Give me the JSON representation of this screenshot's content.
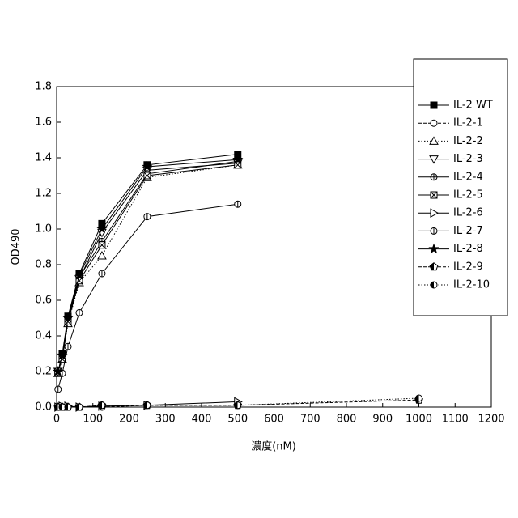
{
  "chart_data": {
    "type": "line",
    "x_label": "濃度(nM)",
    "y_label": "OD490",
    "x": [
      3.9,
      15.6,
      31.25,
      62.5,
      125,
      250,
      500,
      1000
    ],
    "xlim": [
      0,
      1200
    ],
    "ylim": [
      0,
      1.8
    ],
    "xticks": [
      0,
      100,
      200,
      300,
      400,
      500,
      600,
      700,
      800,
      900,
      1000,
      1100,
      1200
    ],
    "yticks": [
      {
        "value": 0,
        "label": "0.0"
      },
      0.2,
      0.4,
      0.6,
      0.8,
      {
        "value": 1,
        "label": "1.0"
      },
      1.2,
      1.4,
      1.6,
      1.8
    ],
    "color": "#000000",
    "legend": "right",
    "series": [
      {
        "name": "IL-2 WT",
        "marker": "square-filled",
        "dash": "solid",
        "values": [
          0.2,
          0.3,
          0.51,
          0.75,
          1.03,
          1.36,
          1.42,
          null
        ]
      },
      {
        "name": "IL-2-1",
        "marker": "circle-open",
        "dash": "dashed",
        "values": [
          0,
          0,
          0,
          0,
          0,
          0.01,
          0.01,
          null
        ]
      },
      {
        "name": "IL-2-2",
        "marker": "triangle-up",
        "dash": "dotted",
        "values": [
          0.19,
          0.27,
          0.47,
          0.7,
          0.85,
          1.29,
          1.36,
          null
        ]
      },
      {
        "name": "IL-2-3",
        "marker": "triangle-down",
        "dash": "solid",
        "values": [
          0.2,
          0.28,
          0.49,
          0.72,
          0.98,
          1.33,
          1.37,
          null
        ]
      },
      {
        "name": "IL-2-4",
        "marker": "circle-cross",
        "dash": "solid",
        "values": [
          0.2,
          0.28,
          0.49,
          0.73,
          0.93,
          1.31,
          1.38,
          null
        ]
      },
      {
        "name": "IL-2-5",
        "marker": "x-box",
        "dash": "solid",
        "values": [
          0.2,
          0.27,
          0.48,
          0.71,
          0.91,
          1.3,
          1.36,
          null
        ]
      },
      {
        "name": "IL-2-6",
        "marker": "triangle-right",
        "dash": "solid",
        "values": [
          0,
          0.005,
          0.005,
          0,
          0.005,
          0.01,
          0.03,
          null
        ]
      },
      {
        "name": "IL-2-7",
        "marker": "circle-vline",
        "dash": "solid",
        "values": [
          0.1,
          0.19,
          0.34,
          0.53,
          0.75,
          1.07,
          1.14,
          null
        ]
      },
      {
        "name": "IL-2-8",
        "marker": "star",
        "dash": "solid",
        "values": [
          0.2,
          0.29,
          0.5,
          0.74,
          1.0,
          1.35,
          1.39,
          null
        ]
      },
      {
        "name": "IL-2-9",
        "marker": "pentagon-half",
        "dash": "dashed",
        "values": [
          0,
          0,
          0,
          0,
          0.01,
          0.01,
          0.01,
          0.04
        ]
      },
      {
        "name": "IL-2-10",
        "marker": "circle-half",
        "dash": "dotted",
        "values": [
          0,
          0,
          0,
          0,
          0.01,
          0.01,
          0.01,
          0.05
        ]
      }
    ]
  }
}
